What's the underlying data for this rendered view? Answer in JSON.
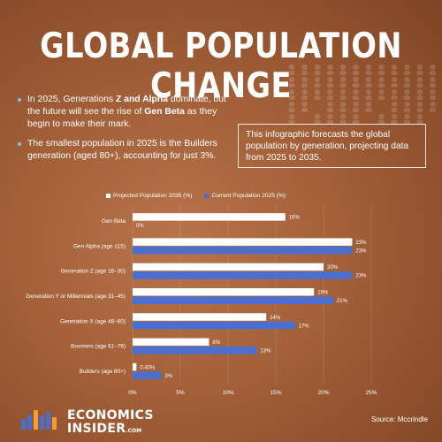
{
  "header": {
    "title": "GLOBAL POPULATION CHANGE"
  },
  "bullets": [
    {
      "parts": [
        {
          "text": "In 2025, Generations ",
          "bold": false
        },
        {
          "text": "Z and Alpha",
          "bold": true
        },
        {
          "text": " dominate, but the future will see the rise of ",
          "bold": false
        },
        {
          "text": "Gen Beta",
          "bold": true
        },
        {
          "text": " as they begin to make their mark.",
          "bold": false
        }
      ]
    },
    {
      "parts": [
        {
          "text": "The smallest population in 2025 is the Builders generation (aged 80+), accounting for just 3%.",
          "bold": false
        }
      ]
    }
  ],
  "infobox": {
    "text": "This infographic forecasts the global population by generation, projecting data from 2025 to 2035."
  },
  "footer": {
    "logo_line1": "ECONOMICS",
    "logo_line2": "INSIDER",
    "logo_suffix": ".COM",
    "source": "Source: Mccrindle"
  },
  "colors": {
    "projected": "#ffffff",
    "current": "#4a6fd0",
    "logo_blue": "#4a6fd0",
    "logo_orange": "#f0a030"
  },
  "chart_data": {
    "type": "bar",
    "orientation": "horizontal",
    "categories": [
      "Gen Beta",
      "Gen Alpha (age ≤15)",
      "Generation Z (age 16–30)",
      "Generation Y or Millennials (age 31–45)",
      "Generation X (age 46–60)",
      "Boomers (age 61–79)",
      "Builders (age 80+)"
    ],
    "series": [
      {
        "name": "Projected Population 2035 (%)",
        "values": [
          16,
          23,
          20,
          19,
          14,
          8,
          0.4
        ],
        "labels": [
          "16%",
          "23%",
          "20%",
          "19%",
          "14%",
          "8%",
          "0.40%"
        ]
      },
      {
        "name": "Current Population 2025 (%)",
        "values": [
          0,
          23,
          23,
          21,
          17,
          13,
          3
        ],
        "labels": [
          "0%",
          "23%",
          "23%",
          "21%",
          "17%",
          "13%",
          "3%"
        ]
      }
    ],
    "xlim": [
      0,
      25
    ],
    "xticks": [
      "0%",
      "5%",
      "10%",
      "15%",
      "20%",
      "25%"
    ],
    "legend_position": "top",
    "grid": true
  }
}
